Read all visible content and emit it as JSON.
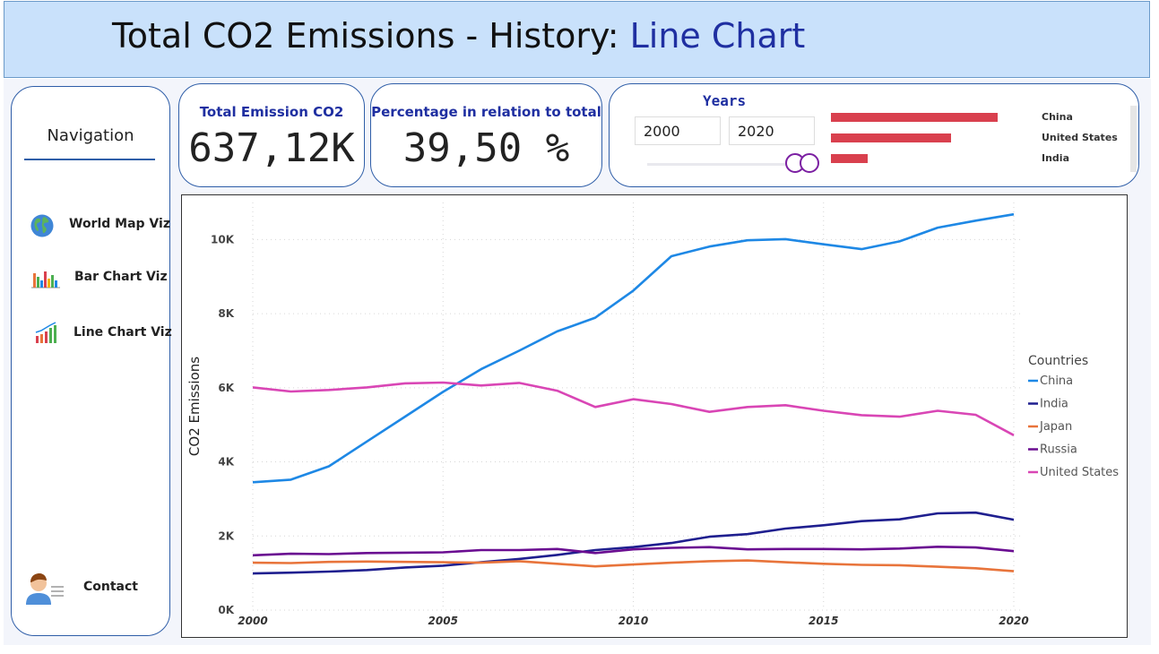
{
  "header": {
    "title_prefix": "Total CO2 Emissions - History:",
    "title_accent": "Line Chart"
  },
  "nav": {
    "title": "Navigation",
    "items": [
      {
        "label": "World Map Viz",
        "icon": "globe-icon"
      },
      {
        "label": "Bar Chart Viz",
        "icon": "bar-chart-icon"
      },
      {
        "label": "Line Chart Viz",
        "icon": "line-chart-icon"
      },
      {
        "label": "Contact",
        "icon": "contact-person-icon"
      }
    ]
  },
  "kpis": [
    {
      "label": "Total Emission CO2",
      "value": "637,12K"
    },
    {
      "label": "Percentage in relation to total",
      "value": "39,50 %"
    }
  ],
  "filter": {
    "title": "Years",
    "from": "2000",
    "to": "2020",
    "top_countries": [
      {
        "name": "China",
        "value": 1.0
      },
      {
        "name": "United States",
        "value": 0.72
      },
      {
        "name": "India",
        "value": 0.22
      }
    ]
  },
  "colors": {
    "accent": "#1f2fa1",
    "header_bg": "#c9e1fb",
    "mini_bar": "#d9404e",
    "slider_knob": "#7b1fa2"
  },
  "chart_data": {
    "type": "line",
    "ylabel": "CO2 Emissions",
    "xlabel": "",
    "legend_title": "Countries",
    "legend_position": "right",
    "grid": true,
    "x": [
      2000,
      2001,
      2002,
      2003,
      2004,
      2005,
      2006,
      2007,
      2008,
      2009,
      2010,
      2011,
      2012,
      2013,
      2014,
      2015,
      2016,
      2017,
      2018,
      2019,
      2020
    ],
    "xticks": [
      2000,
      2005,
      2010,
      2015,
      2020
    ],
    "yticks": [
      0,
      2000,
      4000,
      6000,
      8000,
      10000
    ],
    "ytick_labels": [
      "0K",
      "2K",
      "4K",
      "6K",
      "8K",
      "10K"
    ],
    "ylim": [
      0,
      11000
    ],
    "series": [
      {
        "name": "China",
        "color": "#1e88e5",
        "values": [
          3450,
          3520,
          3880,
          4550,
          5220,
          5890,
          6500,
          7000,
          7520,
          7890,
          8620,
          9550,
          9810,
          9980,
          10010,
          9870,
          9740,
          9950,
          10320,
          10510,
          10680
        ]
      },
      {
        "name": "India",
        "color": "#1f1f8f",
        "values": [
          990,
          1010,
          1040,
          1080,
          1150,
          1200,
          1290,
          1380,
          1490,
          1620,
          1700,
          1810,
          1980,
          2050,
          2200,
          2290,
          2400,
          2450,
          2610,
          2630,
          2440
        ]
      },
      {
        "name": "Japan",
        "color": "#e8743b",
        "values": [
          1280,
          1270,
          1300,
          1310,
          1300,
          1290,
          1280,
          1320,
          1250,
          1180,
          1230,
          1280,
          1320,
          1340,
          1290,
          1250,
          1220,
          1210,
          1170,
          1130,
          1050
        ]
      },
      {
        "name": "Russia",
        "color": "#6a0d91",
        "values": [
          1480,
          1520,
          1510,
          1540,
          1550,
          1560,
          1620,
          1620,
          1650,
          1540,
          1640,
          1680,
          1700,
          1640,
          1650,
          1650,
          1640,
          1660,
          1710,
          1690,
          1590
        ]
      },
      {
        "name": "United States",
        "color": "#d946b5",
        "values": [
          6010,
          5900,
          5940,
          6010,
          6120,
          6140,
          6060,
          6130,
          5920,
          5480,
          5690,
          5560,
          5350,
          5480,
          5530,
          5380,
          5260,
          5220,
          5380,
          5270,
          4720
        ]
      }
    ]
  }
}
